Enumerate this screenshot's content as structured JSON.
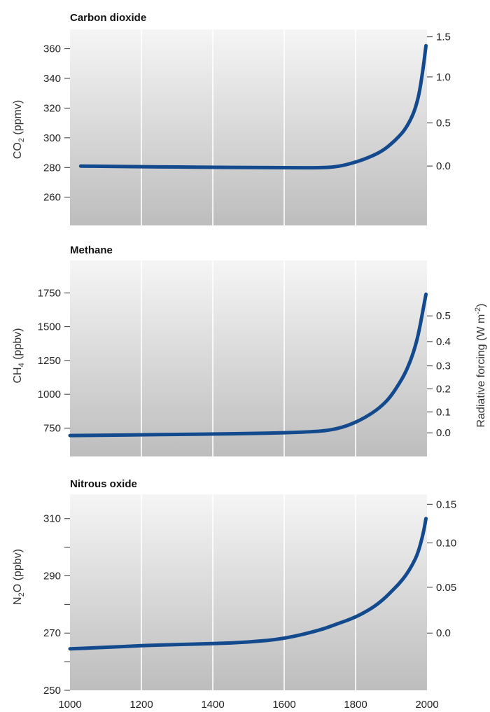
{
  "colors": {
    "line": "#134a8e",
    "panel_top": "#f5f5f5",
    "panel_bottom": "#bdbdbd",
    "gridline": "#ffffff",
    "tick": "#333333"
  },
  "right_axis_label": {
    "main": "Radiative forcing (W m",
    "sup": "-2",
    "end": ")"
  },
  "chart_data": [
    {
      "type": "line",
      "title": "Carbon dioxide",
      "ylabel": {
        "main": "CO",
        "sub": "2",
        "end": " (ppmv)"
      },
      "xlim": [
        1000,
        2000
      ],
      "ylim": [
        241,
        373
      ],
      "y_ticks": [
        {
          "v": 260,
          "label": "260"
        },
        {
          "v": 280,
          "label": "280"
        },
        {
          "v": 300,
          "label": "300"
        },
        {
          "v": 320,
          "label": "320"
        },
        {
          "v": 340,
          "label": "340"
        },
        {
          "v": 360,
          "label": "360"
        }
      ],
      "rf_ticks": [
        {
          "v": 281,
          "label": "0.0"
        },
        {
          "v": 310,
          "label": "0.5"
        },
        {
          "v": 341,
          "label": "1.0"
        },
        {
          "v": 368,
          "label": "1.5"
        }
      ],
      "x_gridlines": [
        1200,
        1400,
        1600,
        1800
      ],
      "series": [
        {
          "x": [
            1030,
            1100,
            1200,
            1300,
            1400,
            1500,
            1600,
            1700,
            1750,
            1800,
            1850,
            1880,
            1900,
            1920,
            1940,
            1960,
            1970,
            1980,
            1990,
            1997
          ],
          "y": [
            281,
            280.8,
            280.5,
            280.3,
            280.2,
            280,
            279.9,
            279.8,
            280.5,
            283.5,
            288,
            292,
            296,
            300.5,
            306,
            315,
            322,
            332,
            348,
            362
          ]
        }
      ]
    },
    {
      "type": "line",
      "title": "Methane",
      "ylabel": {
        "main": "CH",
        "sub": "4",
        "end": " (ppbv)"
      },
      "xlim": [
        1000,
        2000
      ],
      "ylim": [
        540,
        1990
      ],
      "y_ticks": [
        {
          "v": 750,
          "label": "750"
        },
        {
          "v": 1000,
          "label": "1000"
        },
        {
          "v": 1250,
          "label": "1250"
        },
        {
          "v": 1500,
          "label": "1500"
        },
        {
          "v": 1750,
          "label": "1750"
        }
      ],
      "rf_ticks": [
        {
          "v": 715,
          "label": "0.0"
        },
        {
          "v": 870,
          "label": "0.1"
        },
        {
          "v": 1040,
          "label": "0.2"
        },
        {
          "v": 1210,
          "label": "0.3"
        },
        {
          "v": 1390,
          "label": "0.4"
        },
        {
          "v": 1580,
          "label": "0.5"
        }
      ],
      "x_gridlines": [
        1200,
        1400,
        1600,
        1800
      ],
      "series": [
        {
          "x": [
            1000,
            1100,
            1200,
            1300,
            1400,
            1500,
            1600,
            1700,
            1750,
            1800,
            1850,
            1880,
            1900,
            1920,
            1940,
            1960,
            1975,
            1990,
            1997
          ],
          "y": [
            695,
            697,
            700,
            703,
            706,
            710,
            715,
            725,
            745,
            790,
            865,
            930,
            990,
            1070,
            1160,
            1290,
            1430,
            1640,
            1740
          ]
        }
      ]
    },
    {
      "type": "line",
      "title": "Nitrous oxide",
      "ylabel": {
        "main": "N",
        "sub": "2",
        "end": "O (ppbv)"
      },
      "xlim": [
        1000,
        2000
      ],
      "ylim": [
        250,
        318.5
      ],
      "y_ticks": [
        {
          "v": 250,
          "label": "250"
        },
        {
          "v": 260,
          "label": ""
        },
        {
          "v": 270,
          "label": "270"
        },
        {
          "v": 280,
          "label": ""
        },
        {
          "v": 290,
          "label": "290"
        },
        {
          "v": 300,
          "label": ""
        },
        {
          "v": 310,
          "label": "310"
        }
      ],
      "rf_ticks": [
        {
          "v": 270,
          "label": "0.0"
        },
        {
          "v": 286,
          "label": "0.05"
        },
        {
          "v": 301.5,
          "label": "0.10"
        },
        {
          "v": 315,
          "label": "0.15"
        }
      ],
      "x_ticks": [
        {
          "v": 1000,
          "label": "1000"
        },
        {
          "v": 1200,
          "label": "1200"
        },
        {
          "v": 1400,
          "label": "1400"
        },
        {
          "v": 1600,
          "label": "1600"
        },
        {
          "v": 1800,
          "label": "1800"
        },
        {
          "v": 2000,
          "label": "2000"
        }
      ],
      "x_gridlines": [
        1200,
        1400,
        1600,
        1800
      ],
      "series": [
        {
          "x": [
            1000,
            1100,
            1200,
            1300,
            1400,
            1500,
            1600,
            1700,
            1750,
            1800,
            1850,
            1880,
            1900,
            1920,
            1940,
            1960,
            1975,
            1990,
            1997
          ],
          "y": [
            264.5,
            265,
            265.6,
            266,
            266.3,
            266.8,
            268,
            271,
            273.3,
            275.5,
            279,
            282,
            284.5,
            287,
            290,
            294,
            298,
            305,
            310
          ]
        }
      ]
    }
  ]
}
